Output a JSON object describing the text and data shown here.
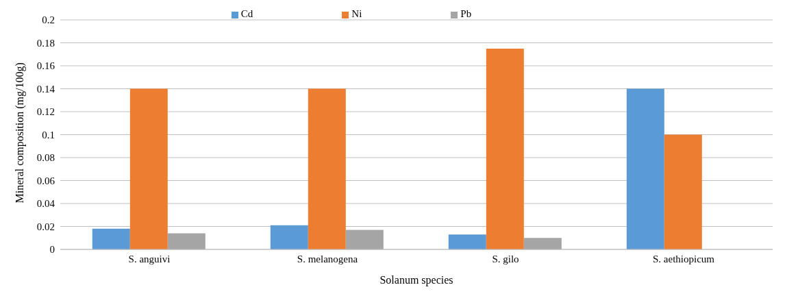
{
  "chart_data": {
    "type": "bar",
    "xlabel": "Solanum species",
    "ylabel": "Mineral composition (mg/100g)",
    "categories": [
      "S. anguivi",
      "S. melanogena",
      "S. gilo",
      "S. aethiopicum"
    ],
    "series": [
      {
        "name": "Cd",
        "color": "#5b9bd5",
        "values": [
          0.018,
          0.021,
          0.013,
          0.14
        ]
      },
      {
        "name": "Ni",
        "color": "#ed7d31",
        "values": [
          0.14,
          0.14,
          0.175,
          0.1
        ]
      },
      {
        "name": "Pb",
        "color": "#a5a5a5",
        "values": [
          0.014,
          0.017,
          0.01,
          0
        ]
      }
    ],
    "ylim": [
      0,
      0.2
    ],
    "yticks": [
      0,
      0.02,
      0.04,
      0.06,
      0.08,
      0.1,
      0.12,
      0.14,
      0.16,
      0.18,
      0.2
    ],
    "grid": "y",
    "legend": "top"
  }
}
